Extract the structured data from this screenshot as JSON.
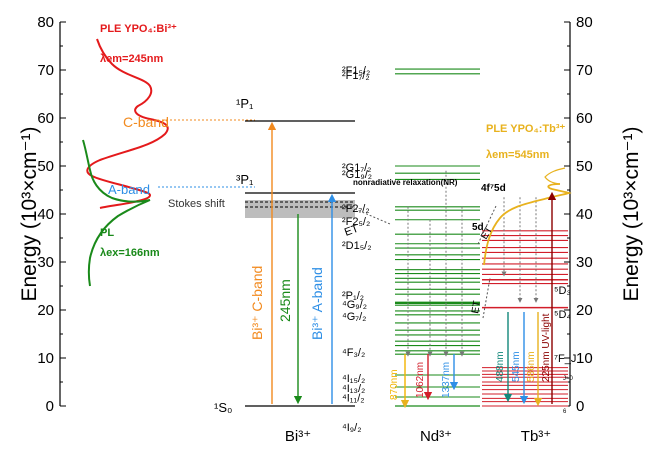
{
  "axes": {
    "ylabel": "Energy (10³×cm⁻¹)",
    "ylim": [
      0,
      80
    ],
    "ticks": [
      "0",
      "10",
      "20",
      "30",
      "40",
      "50",
      "60",
      "70",
      "80"
    ]
  },
  "columns": {
    "bi": "Bi³⁺",
    "nd": "Nd³⁺",
    "tb": "Tb³⁺"
  },
  "bi_levels": {
    "s0": "¹S₀",
    "p3": "³P₁",
    "p1": "¹P₁"
  },
  "bi_annotations": {
    "ple_title": "PLE YPO₄:Bi³⁺",
    "ple_lambda": "λem=245nm",
    "c_band": "C-band",
    "a_band": "A-band",
    "stokes": "Stokes shift",
    "pl": "PL",
    "pl_lambda": "λex=166nm",
    "arrow_c": "Bi³⁺ C-band",
    "arrow_245": "245nm",
    "arrow_a": "Bi³⁺ A-band"
  },
  "nd_levels": [
    {
      "label": "²F1₅/₂",
      "energy": 70.2
    },
    {
      "label": "²F1₇/₂",
      "energy": 69.2
    },
    {
      "label": "²G1₇/₂",
      "energy": 50.0
    },
    {
      "label": "²G1₉/₂",
      "energy": 48.5
    },
    {
      "label": "²F2₇/₂",
      "energy": 41.5
    },
    {
      "label": "²F2₅/₂",
      "energy": 38.8
    },
    {
      "label": "²D1₅/₂",
      "energy": 33.8
    },
    {
      "label": "²P₁/₂",
      "energy": 23.3
    },
    {
      "label": "⁴G₉/₂",
      "energy": 21.5
    },
    {
      "label": "⁴G₇/₂",
      "energy": 19.0
    },
    {
      "label": "⁴F₃/₂",
      "energy": 11.5
    },
    {
      "label": "⁴I₁₅/₂",
      "energy": 6.0
    },
    {
      "label": "⁴I₁₃/₂",
      "energy": 4.0
    },
    {
      "label": "⁴I₁₁/₂",
      "energy": 2.0
    },
    {
      "label": "⁴I₉/₂",
      "energy": 0
    }
  ],
  "nd_annotations": {
    "nr": "nonradiative relaxation(NR)",
    "et": "ET",
    "em_870": "870nm",
    "em_1062": "1062nm",
    "em_1337": "1337nm"
  },
  "tb_annotations": {
    "ple_title": "PLE YPO₄:Tb³⁺",
    "ple_lambda": "λem=545nm",
    "f5d": "4f⁷5d",
    "d5": "5d",
    "et": "ET",
    "d3": "⁵D₃",
    "d4": "⁵D₄",
    "fj": "⁷F_J",
    "j0": "J=0",
    "j6": "6",
    "em_488": "488nm",
    "em_545": "545nm",
    "em_586": "586nm",
    "em_225": "225nm UV-light"
  },
  "colors": {
    "bi_ple": "#e41a1c",
    "bi_pl": "#1a8a1a",
    "orange": "#f28a1e",
    "blue": "#2e8fe6",
    "green": "#1a8a1a",
    "tb_ple": "#e8b21e",
    "tb_red": "#d21e2a",
    "darkred": "#8b0000",
    "teal": "#12877a"
  }
}
